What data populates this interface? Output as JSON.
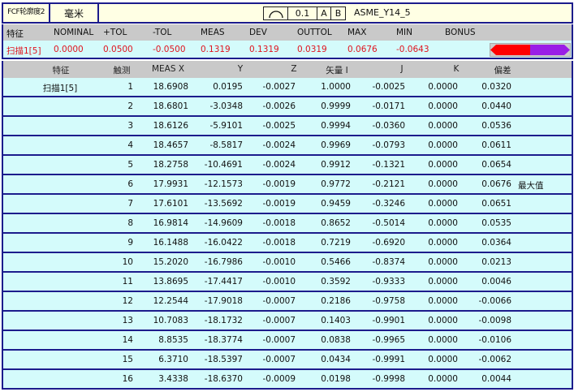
{
  "top": {
    "fcf_label": "FCF轮廓度2",
    "unit": "毫米",
    "frame": {
      "symbol": "profile-of-surface-icon",
      "tolerance": "0.1",
      "datum_a": "A",
      "datum_b": "B"
    },
    "standard": "ASME_Y14_5"
  },
  "summary": {
    "headers": [
      "特征",
      "NOMINAL",
      "+TOL",
      "-TOL",
      "MEAS",
      "DEV",
      "OUTTOL",
      "MAX",
      "MIN",
      "BONUS"
    ],
    "values": [
      "扫描1[5]",
      "0.0000",
      "0.0500",
      "-0.0500",
      "0.1319",
      "0.1319",
      "0.0319",
      "0.0676",
      "-0.0643",
      ""
    ],
    "bar_colors": {
      "left": "#ff0000",
      "right": "#9a1ee6"
    }
  },
  "table": {
    "headers": [
      "特征",
      "触测",
      "MEAS X",
      "Y",
      "Z",
      "矢量 I",
      "J",
      "K",
      "偏差"
    ],
    "rows": [
      [
        "扫描1[5]",
        "1",
        "18.6908",
        "0.0195",
        "-0.0027",
        "1.0000",
        "-0.0025",
        "0.0000",
        "0.0320",
        ""
      ],
      [
        "",
        "2",
        "18.6801",
        "-3.0348",
        "-0.0026",
        "0.9999",
        "-0.0171",
        "0.0000",
        "0.0440",
        ""
      ],
      [
        "",
        "3",
        "18.6126",
        "-5.9101",
        "-0.0025",
        "0.9994",
        "-0.0360",
        "0.0000",
        "0.0536",
        ""
      ],
      [
        "",
        "4",
        "18.4657",
        "-8.5817",
        "-0.0024",
        "0.9969",
        "-0.0793",
        "0.0000",
        "0.0611",
        ""
      ],
      [
        "",
        "5",
        "18.2758",
        "-10.4691",
        "-0.0024",
        "0.9912",
        "-0.1321",
        "0.0000",
        "0.0654",
        ""
      ],
      [
        "",
        "6",
        "17.9931",
        "-12.1573",
        "-0.0019",
        "0.9772",
        "-0.2121",
        "0.0000",
        "0.0676",
        "最大值"
      ],
      [
        "",
        "7",
        "17.6101",
        "-13.5692",
        "-0.0019",
        "0.9459",
        "-0.3246",
        "0.0000",
        "0.0651",
        ""
      ],
      [
        "",
        "8",
        "16.9814",
        "-14.9609",
        "-0.0018",
        "0.8652",
        "-0.5014",
        "0.0000",
        "0.0535",
        ""
      ],
      [
        "",
        "9",
        "16.1488",
        "-16.0422",
        "-0.0018",
        "0.7219",
        "-0.6920",
        "0.0000",
        "0.0364",
        ""
      ],
      [
        "",
        "10",
        "15.2020",
        "-16.7986",
        "-0.0010",
        "0.5466",
        "-0.8374",
        "0.0000",
        "0.0213",
        ""
      ],
      [
        "",
        "11",
        "13.8695",
        "-17.4417",
        "-0.0010",
        "0.3592",
        "-0.9333",
        "0.0000",
        "0.0046",
        ""
      ],
      [
        "",
        "12",
        "12.2544",
        "-17.9018",
        "-0.0007",
        "0.2186",
        "-0.9758",
        "0.0000",
        "-0.0066",
        ""
      ],
      [
        "",
        "13",
        "10.7083",
        "-18.1732",
        "-0.0007",
        "0.1403",
        "-0.9901",
        "0.0000",
        "-0.0098",
        ""
      ],
      [
        "",
        "14",
        "8.8535",
        "-18.3774",
        "-0.0007",
        "0.0838",
        "-0.9965",
        "0.0000",
        "-0.0106",
        ""
      ],
      [
        "",
        "15",
        "6.3710",
        "-18.5397",
        "-0.0007",
        "0.0434",
        "-0.9991",
        "0.0000",
        "-0.0062",
        ""
      ],
      [
        "",
        "16",
        "3.4338",
        "-18.6370",
        "-0.0009",
        "0.0198",
        "-0.9998",
        "0.0000",
        "0.0044",
        ""
      ]
    ]
  }
}
